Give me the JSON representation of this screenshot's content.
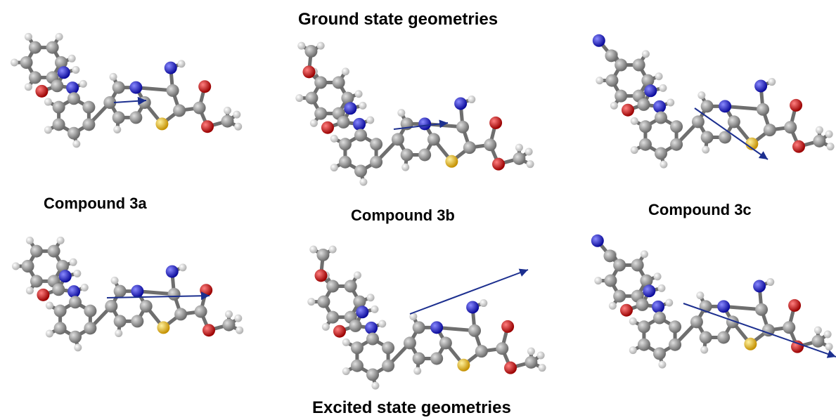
{
  "headings": {
    "top": "Ground state geometries",
    "bottom": "Excited state geometries"
  },
  "captions": {
    "a": "Compound 3a",
    "b": "Compound 3b",
    "c": "Compound 3c"
  },
  "colors": {
    "carbon": "#8c8c8c",
    "hydrogen": "#e6e6e6",
    "nitrogen": "#1a1ad6",
    "oxygen": "#d40000",
    "sulfur": "#e6b800",
    "bond": "#6e6e6e",
    "dipole": "#1c2f8f"
  }
}
